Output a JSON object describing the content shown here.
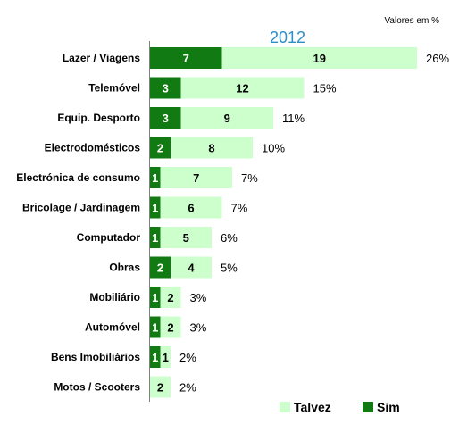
{
  "chart_data": {
    "type": "bar",
    "orientation": "horizontal",
    "stacked": true,
    "title": "2012",
    "units_note": "Valores em %",
    "categories": [
      "Lazer / Viagens",
      "Telemóvel",
      "Equip. Desporto",
      "Electrodomésticos",
      "Electrónica de consumo",
      "Bricolage / Jardinagem",
      "Computador",
      "Obras",
      "Mobiliário",
      "Automóvel",
      "Bens Imobiliários",
      "Motos / Scooters"
    ],
    "series": [
      {
        "name": "Sim",
        "values": [
          7,
          3,
          3,
          2,
          1,
          1,
          1,
          2,
          1,
          1,
          1,
          0
        ],
        "labels": [
          "7",
          "3",
          "3",
          "2",
          "1",
          "1",
          "1",
          "2",
          "1",
          "1",
          "1",
          ""
        ]
      },
      {
        "name": "Talvez",
        "values": [
          19,
          12,
          9,
          8,
          7,
          6,
          5,
          4,
          2,
          2,
          1,
          2
        ],
        "labels": [
          "19",
          "12",
          "9",
          "8",
          "7",
          "6",
          "5",
          "4",
          "2",
          "2",
          "1",
          "2"
        ]
      }
    ],
    "totals": [
      "26%",
      "15%",
      "11%",
      "10%",
      "7%",
      "7%",
      "6%",
      "5%",
      "3%",
      "3%",
      "2%",
      "2%"
    ],
    "xlim": [
      0,
      26
    ],
    "grid": false,
    "legend_position": "bottom-right",
    "legend_order": [
      "Talvez",
      "Sim"
    ],
    "colors": {
      "Sim": "#127a12",
      "Talvez": "#ccffcc",
      "title": "#2e8ec9",
      "sim_label_text": "#ffffff",
      "talvez_label_text": "#000000"
    }
  }
}
